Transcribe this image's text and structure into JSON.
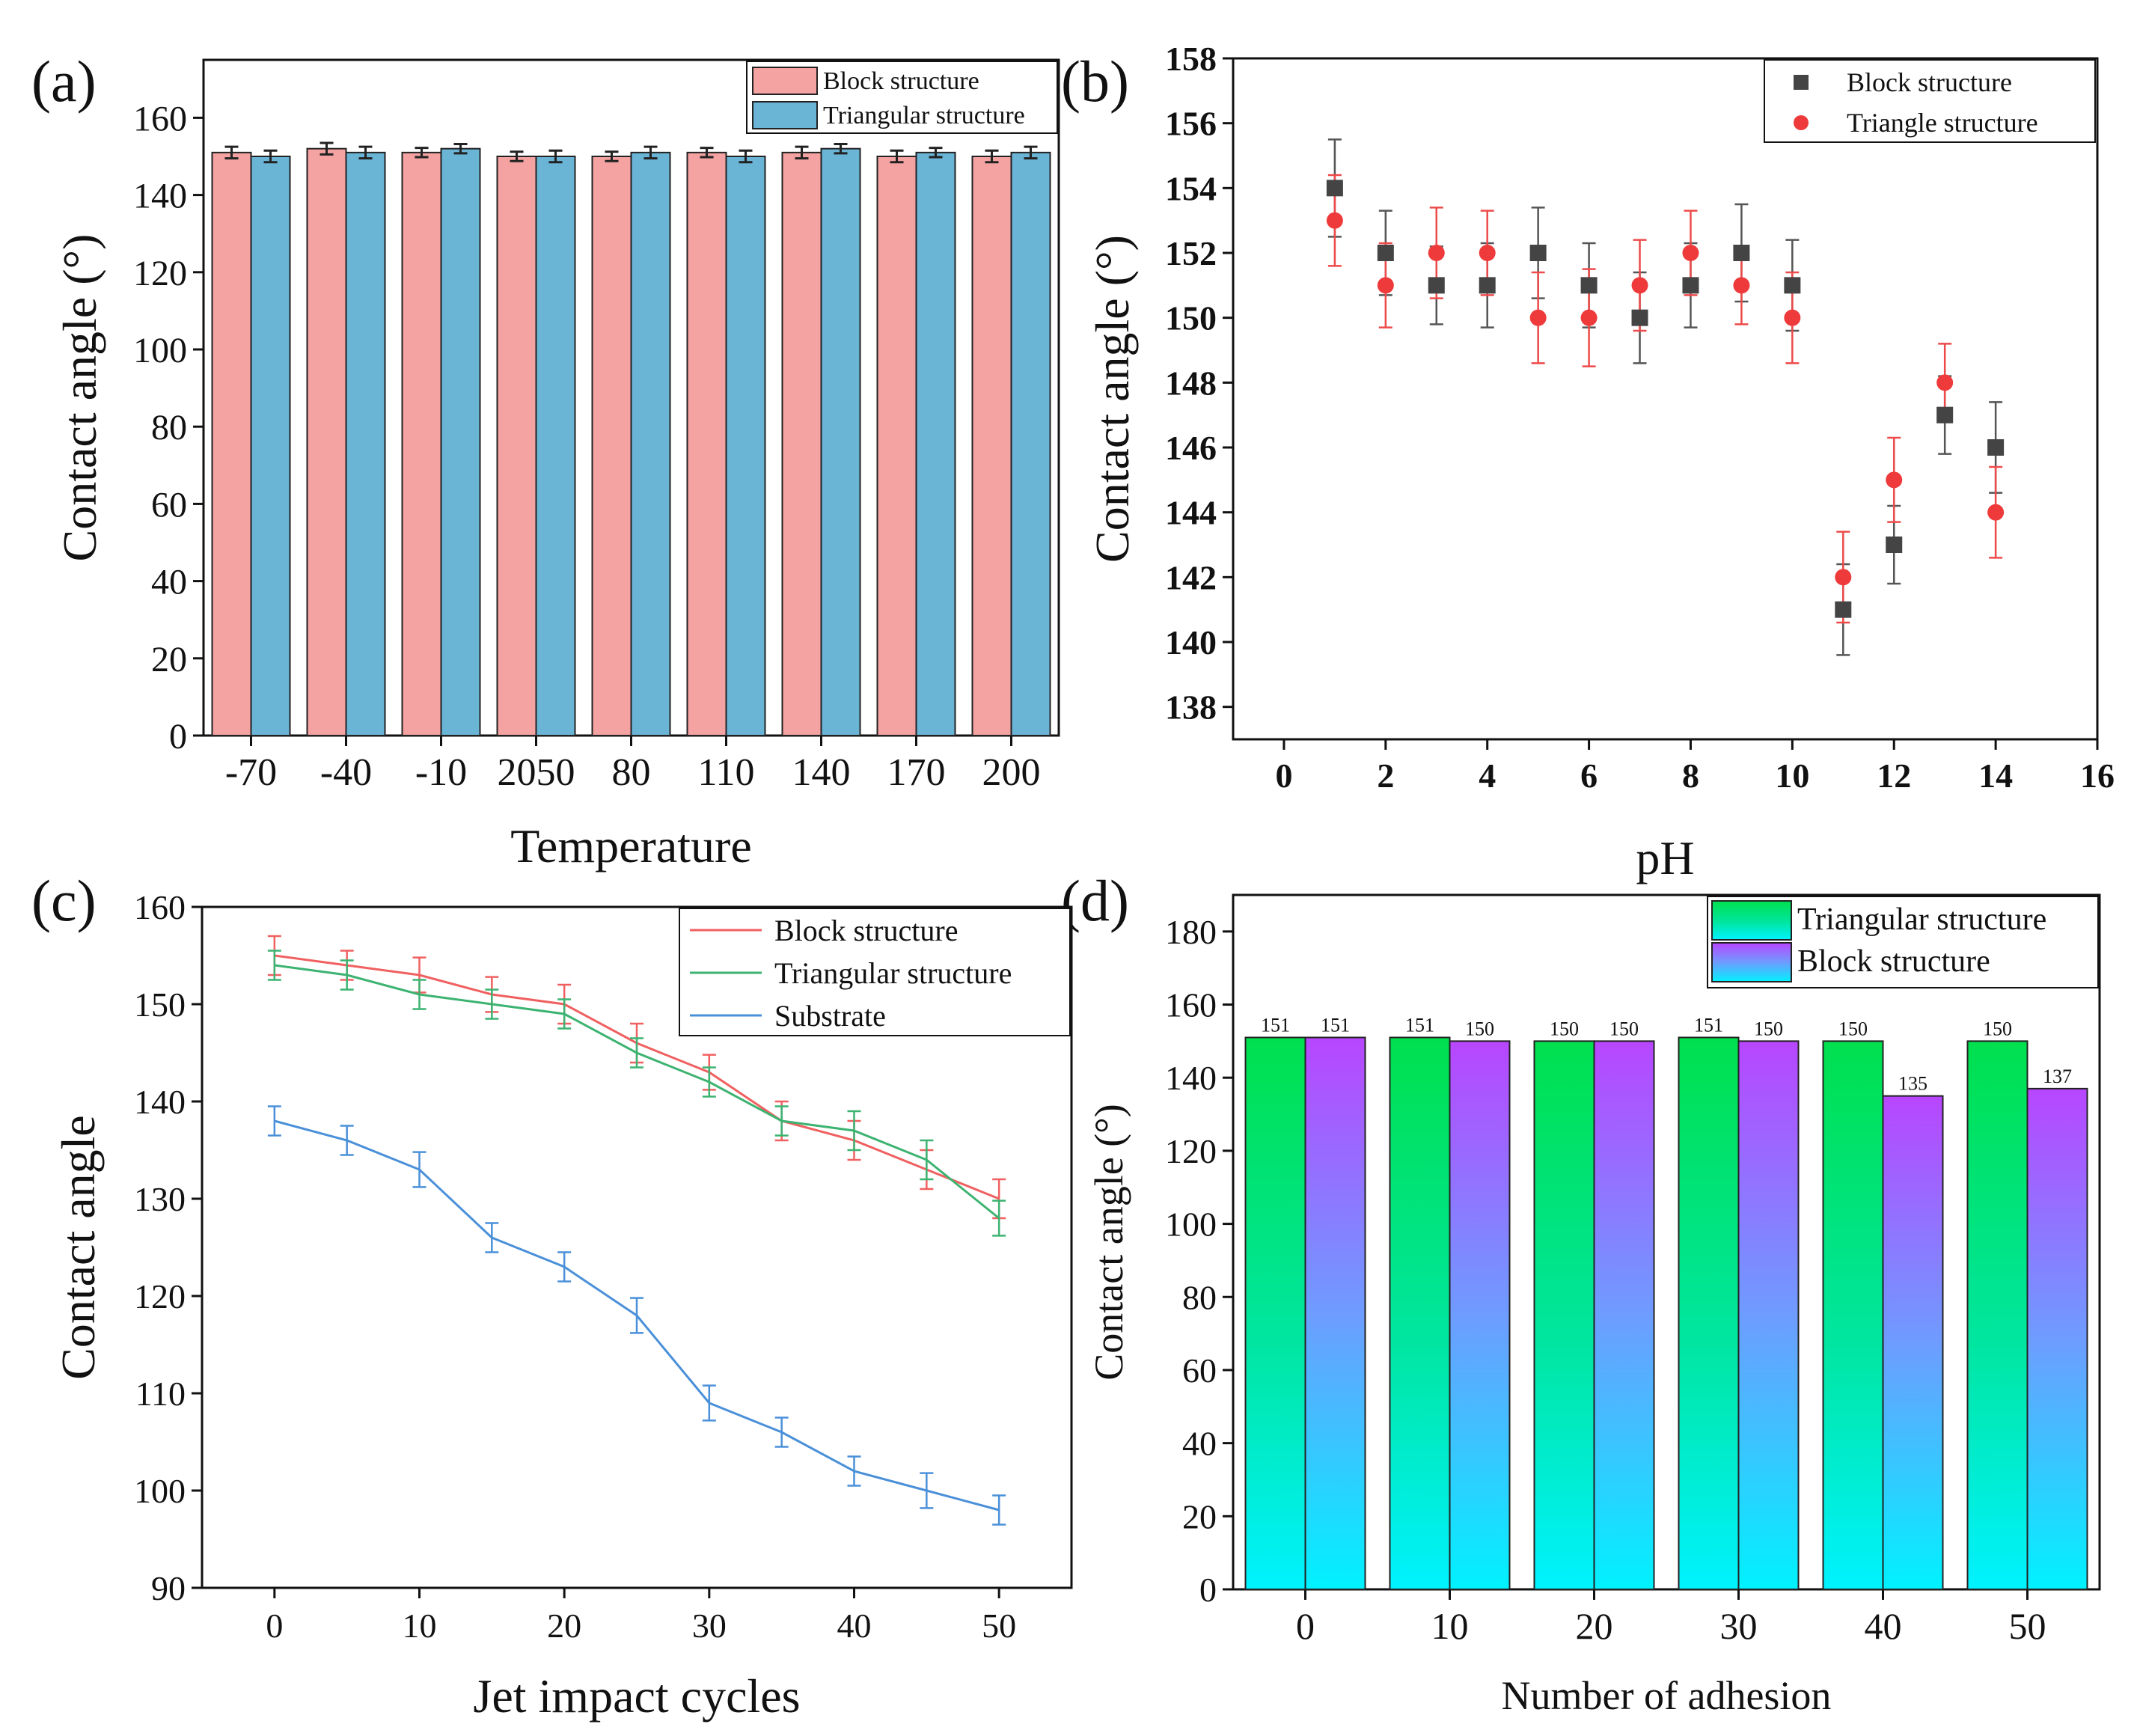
{
  "chart_data": [
    {
      "panel": "(a)",
      "type": "bar",
      "xlabel": "Temperature",
      "ylabel": "Contact angle (°)",
      "ylim": [
        0,
        175
      ],
      "yticks": [
        0,
        20,
        40,
        60,
        80,
        100,
        120,
        140,
        160
      ],
      "categories": [
        "-70",
        "-40",
        "-10",
        "2050",
        "80",
        "110",
        "140",
        "170",
        "200"
      ],
      "legend_position": "top-right",
      "series": [
        {
          "name": "Block structure",
          "color": "#f4a2a2",
          "values": [
            151,
            152,
            151,
            150,
            150,
            151,
            151,
            150,
            150
          ],
          "errors": [
            1.5,
            1.5,
            1.2,
            1.2,
            1.2,
            1.2,
            1.5,
            1.5,
            1.5
          ]
        },
        {
          "name": "Triangular structure",
          "color": "#6ab4d6",
          "values": [
            150,
            151,
            152,
            150,
            151,
            150,
            152,
            151,
            151
          ],
          "errors": [
            1.5,
            1.5,
            1.2,
            1.5,
            1.5,
            1.5,
            1.2,
            1.2,
            1.5
          ]
        }
      ]
    },
    {
      "panel": "(b)",
      "type": "scatter",
      "xlabel": "pH",
      "ylabel": "Contact angle (°)",
      "xlim": [
        -1,
        16
      ],
      "ylim": [
        137,
        158
      ],
      "xticks": [
        0,
        2,
        4,
        6,
        8,
        10,
        12,
        14,
        16
      ],
      "yticks": [
        138,
        140,
        142,
        144,
        146,
        148,
        150,
        152,
        154,
        156,
        158
      ],
      "legend_position": "top-right",
      "series": [
        {
          "name": "Block structure",
          "color": "#444444",
          "marker": "square",
          "x": [
            1,
            2,
            3,
            4,
            5,
            6,
            7,
            8,
            9,
            10,
            11,
            12,
            13,
            14
          ],
          "values": [
            154,
            152,
            151,
            151,
            152,
            151,
            150,
            151,
            152,
            151,
            141,
            143,
            147,
            146
          ],
          "errors": [
            1.5,
            1.3,
            1.2,
            1.3,
            1.4,
            1.3,
            1.4,
            1.3,
            1.5,
            1.4,
            1.4,
            1.2,
            1.2,
            1.4
          ]
        },
        {
          "name": "Triangle structure",
          "color": "#ee3a3a",
          "marker": "circle",
          "x": [
            1,
            2,
            3,
            4,
            5,
            6,
            7,
            8,
            9,
            10,
            11,
            12,
            13,
            14
          ],
          "values": [
            153,
            151,
            152,
            152,
            150,
            150,
            151,
            152,
            151,
            150,
            142,
            145,
            148,
            144
          ],
          "errors": [
            1.4,
            1.3,
            1.4,
            1.3,
            1.4,
            1.5,
            1.4,
            1.3,
            1.2,
            1.4,
            1.4,
            1.3,
            1.2,
            1.4
          ]
        }
      ]
    },
    {
      "panel": "(c)",
      "type": "line",
      "xlabel": "Jet impact cycles",
      "ylabel": "Contact angle",
      "xlim": [
        -5,
        55
      ],
      "ylim": [
        90,
        160
      ],
      "xticks": [
        0,
        10,
        20,
        30,
        40,
        50
      ],
      "yticks": [
        90,
        100,
        110,
        120,
        130,
        140,
        150,
        160
      ],
      "legend_position": "top-right",
      "x": [
        0,
        5,
        10,
        15,
        20,
        25,
        30,
        35,
        40,
        45,
        50
      ],
      "series": [
        {
          "name": "Block structure",
          "color": "#f06060",
          "values": [
            155,
            154,
            153,
            151,
            150,
            146,
            143,
            138,
            136,
            133,
            130
          ],
          "errors": [
            2,
            1.5,
            1.8,
            1.8,
            2,
            2,
            1.8,
            2,
            2,
            2,
            2
          ]
        },
        {
          "name": "Triangular structure",
          "color": "#3cb371",
          "values": [
            154,
            153,
            151,
            150,
            149,
            145,
            142,
            138,
            137,
            134,
            128
          ],
          "errors": [
            1.5,
            1.5,
            1.5,
            1.5,
            1.5,
            1.5,
            1.5,
            1.5,
            2,
            2,
            1.8
          ]
        },
        {
          "name": "Substrate",
          "color": "#4a90d9",
          "values": [
            138,
            136,
            133,
            126,
            123,
            118,
            109,
            106,
            102,
            100,
            98
          ],
          "errors": [
            1.5,
            1.5,
            1.8,
            1.5,
            1.5,
            1.8,
            1.8,
            1.5,
            1.5,
            1.8,
            1.5
          ]
        }
      ]
    },
    {
      "panel": "(d)",
      "type": "bar",
      "xlabel": "Number of adhesion",
      "ylabel": "Contact angle (°)",
      "ylim": [
        0,
        190
      ],
      "yticks": [
        0,
        20,
        40,
        60,
        80,
        100,
        120,
        140,
        160,
        180
      ],
      "categories": [
        "0",
        "10",
        "20",
        "30",
        "40",
        "50"
      ],
      "legend_position": "top-right",
      "series": [
        {
          "name": "Triangular structure",
          "gradient": [
            "#00e05a",
            "#00f0ff"
          ],
          "values": [
            151,
            151,
            150,
            151,
            150,
            150
          ]
        },
        {
          "name": "Block structure",
          "gradient": [
            "#b44cff",
            "#00f0ff"
          ],
          "values": [
            151,
            150,
            150,
            150,
            135,
            137
          ]
        }
      ]
    }
  ]
}
